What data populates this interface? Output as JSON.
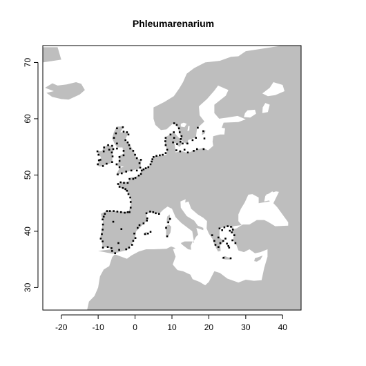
{
  "chart_data": {
    "type": "scatter",
    "title": "Phleumarenarium",
    "xlabel": "",
    "ylabel": "",
    "xlim": [
      -25,
      45
    ],
    "ylim": [
      26,
      73
    ],
    "x_ticks": [
      -20,
      -10,
      0,
      10,
      20,
      30,
      40
    ],
    "y_ticks": [
      30,
      40,
      50,
      60,
      70
    ],
    "grid": false,
    "legend": "none",
    "land_color": "#bebebe",
    "point_color": "#000000",
    "series": [
      {
        "values": [
          [
            -8.5,
            42.6
          ],
          [
            -8.8,
            42.1
          ],
          [
            -8.2,
            43.1
          ],
          [
            -7.6,
            43.6
          ],
          [
            -6.8,
            43.6
          ],
          [
            -5.8,
            43.6
          ],
          [
            -4.8,
            43.5
          ],
          [
            -3.8,
            43.4
          ],
          [
            -2.8,
            43.3
          ],
          [
            -2.0,
            43.4
          ],
          [
            -1.5,
            43.4
          ],
          [
            -1.2,
            44.2
          ],
          [
            -1.2,
            45.2
          ],
          [
            -1.3,
            46.0
          ],
          [
            -1.8,
            46.6
          ],
          [
            -2.2,
            47.2
          ],
          [
            -2.6,
            47.5
          ],
          [
            -3.3,
            47.7
          ],
          [
            -4.2,
            47.9
          ],
          [
            -4.6,
            48.4
          ],
          [
            -3.9,
            48.7
          ],
          [
            -3.0,
            48.6
          ],
          [
            -2.0,
            48.6
          ],
          [
            -1.5,
            49.3
          ],
          [
            -0.5,
            49.3
          ],
          [
            0.1,
            49.5
          ],
          [
            1.0,
            49.9
          ],
          [
            1.6,
            50.2
          ],
          [
            1.8,
            50.8
          ],
          [
            2.3,
            51.0
          ],
          [
            2.9,
            51.2
          ],
          [
            3.6,
            51.4
          ],
          [
            4.2,
            51.9
          ],
          [
            4.5,
            52.4
          ],
          [
            4.7,
            52.8
          ],
          [
            5.0,
            53.2
          ],
          [
            5.8,
            53.4
          ],
          [
            6.7,
            53.5
          ],
          [
            7.5,
            53.6
          ],
          [
            8.3,
            53.9
          ],
          [
            8.7,
            54.5
          ],
          [
            8.3,
            55.3
          ],
          [
            8.2,
            56.0
          ],
          [
            8.3,
            56.6
          ],
          [
            9.6,
            57.2
          ],
          [
            10.5,
            57.6
          ],
          [
            10.6,
            56.6
          ],
          [
            10.3,
            55.8
          ],
          [
            11.4,
            55.5
          ],
          [
            12.3,
            55.9
          ],
          [
            12.4,
            56.4
          ],
          [
            12.6,
            56.9
          ],
          [
            12.1,
            57.6
          ],
          [
            11.9,
            58.3
          ],
          [
            11.3,
            58.9
          ],
          [
            10.6,
            59.2
          ],
          [
            12.9,
            55.6
          ],
          [
            11.2,
            54.4
          ],
          [
            12.2,
            54.2
          ],
          [
            13.4,
            54.5
          ],
          [
            14.3,
            54.0
          ],
          [
            15.9,
            54.3
          ],
          [
            16.8,
            54.6
          ],
          [
            18.6,
            54.6
          ],
          [
            18.8,
            56.5
          ],
          [
            18.5,
            57.8
          ],
          [
            16.5,
            56.6
          ],
          [
            15.6,
            56.2
          ],
          [
            14.2,
            55.6
          ],
          [
            17.0,
            58.4
          ],
          [
            -4.7,
            50.1
          ],
          [
            -3.6,
            50.3
          ],
          [
            -2.4,
            50.6
          ],
          [
            -1.0,
            50.8
          ],
          [
            0.5,
            50.8
          ],
          [
            1.4,
            51.3
          ],
          [
            1.2,
            52.1
          ],
          [
            1.6,
            52.7
          ],
          [
            0.5,
            53.0
          ],
          [
            0.0,
            53.6
          ],
          [
            -0.5,
            54.3
          ],
          [
            -1.3,
            54.7
          ],
          [
            -1.6,
            55.3
          ],
          [
            -2.0,
            55.8
          ],
          [
            -2.6,
            56.2
          ],
          [
            -1.8,
            57.2
          ],
          [
            -2.2,
            57.6
          ],
          [
            -3.1,
            57.7
          ],
          [
            -3.3,
            58.5
          ],
          [
            -4.9,
            58.3
          ],
          [
            -5.2,
            57.4
          ],
          [
            -5.7,
            56.6
          ],
          [
            -4.9,
            55.6
          ],
          [
            -4.9,
            54.7
          ],
          [
            -3.1,
            54.3
          ],
          [
            -3.1,
            53.5
          ],
          [
            -4.2,
            53.2
          ],
          [
            -4.2,
            52.5
          ],
          [
            -5.0,
            51.9
          ],
          [
            -4.2,
            51.4
          ],
          [
            -6.2,
            52.3
          ],
          [
            -6.1,
            53.3
          ],
          [
            -6.3,
            54.0
          ],
          [
            -5.9,
            54.6
          ],
          [
            -6.2,
            55.2
          ],
          [
            -7.3,
            55.3
          ],
          [
            -8.4,
            54.9
          ],
          [
            -8.5,
            54.2
          ],
          [
            -9.9,
            53.6
          ],
          [
            -9.8,
            52.6
          ],
          [
            -10.1,
            51.9
          ],
          [
            -8.7,
            51.6
          ],
          [
            -7.7,
            52.0
          ],
          [
            -9.4,
            52.7
          ],
          [
            -10.2,
            54.2
          ],
          [
            -7.0,
            54.5
          ],
          [
            3.1,
            43.2
          ],
          [
            4.1,
            43.5
          ],
          [
            4.9,
            43.4
          ],
          [
            5.6,
            43.2
          ],
          [
            6.5,
            43.1
          ],
          [
            3.3,
            42.3
          ],
          [
            3.2,
            41.9
          ],
          [
            2.3,
            41.4
          ],
          [
            1.2,
            41.1
          ],
          [
            0.7,
            40.6
          ],
          [
            -0.2,
            39.6
          ],
          [
            0.1,
            38.8
          ],
          [
            -0.5,
            38.3
          ],
          [
            -0.8,
            37.6
          ],
          [
            -1.6,
            37.1
          ],
          [
            -2.4,
            36.8
          ],
          [
            -4.3,
            36.7
          ],
          [
            -5.4,
            36.1
          ],
          [
            -6.2,
            36.5
          ],
          [
            -6.4,
            37.0
          ],
          [
            -7.4,
            37.2
          ],
          [
            -8.7,
            37.1
          ],
          [
            -8.8,
            38.2
          ],
          [
            -9.3,
            38.7
          ],
          [
            -9.0,
            39.5
          ],
          [
            -8.8,
            40.3
          ],
          [
            -8.7,
            41.2
          ],
          [
            9.0,
            41.6
          ],
          [
            9.5,
            42.2
          ],
          [
            8.7,
            39.1
          ],
          [
            8.4,
            40.6
          ],
          [
            3.5,
            39.6
          ],
          [
            2.7,
            39.5
          ],
          [
            4.2,
            39.9
          ],
          [
            -4.5,
            37.9
          ],
          [
            -3.7,
            40.4
          ],
          [
            -5.9,
            41.7
          ],
          [
            22.9,
            40.5
          ],
          [
            23.6,
            40.2
          ],
          [
            24.2,
            40.7
          ],
          [
            25.1,
            40.9
          ],
          [
            26.0,
            40.8
          ],
          [
            26.5,
            40.3
          ],
          [
            26.2,
            39.8
          ],
          [
            26.9,
            39.3
          ],
          [
            26.4,
            38.4
          ],
          [
            27.2,
            37.9
          ],
          [
            25.3,
            37.4
          ],
          [
            25.5,
            37.1
          ],
          [
            24.9,
            37.8
          ],
          [
            23.9,
            38.3
          ],
          [
            23.1,
            37.9
          ],
          [
            22.6,
            37.2
          ],
          [
            21.8,
            37.6
          ],
          [
            21.5,
            38.3
          ],
          [
            20.9,
            39.3
          ],
          [
            22.6,
            38.9
          ],
          [
            24.5,
            38.7
          ],
          [
            25.7,
            40.1
          ],
          [
            24.0,
            35.3
          ],
          [
            25.9,
            35.2
          ]
        ]
      }
    ]
  }
}
